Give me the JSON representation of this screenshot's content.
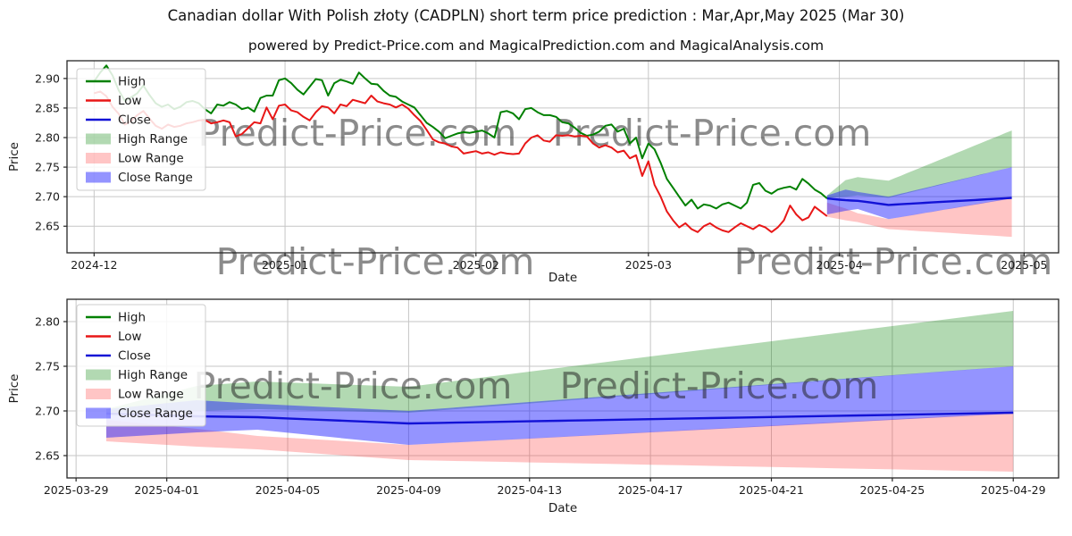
{
  "header": {
    "title": "Canadian dollar With Polish złoty (CADPLN) short term price prediction : Mar,Apr,May 2025 (Mar 30)",
    "subtitle": "powered by Predict-Price.com and MagicalPrediction.com and MagicalAnalysis.com"
  },
  "watermark": "Predict-Price.com",
  "colors": {
    "high_line": "#008000",
    "low_line": "#e81717",
    "close_line": "#1212d6",
    "high_band": "#008000",
    "low_band": "#ff4040",
    "close_band": "#2020ff",
    "grid": "#c6c6c6",
    "spine": "#262626",
    "watermark": "#c2c2c2"
  },
  "chart_data": [
    {
      "type": "line",
      "title": "",
      "xlabel": "Date",
      "ylabel": "Price",
      "xlim_days": [
        -4.4,
        156.6
      ],
      "ylim": [
        2.605,
        2.93
      ],
      "grid": true,
      "legend_position": "upper-left",
      "legend": [
        "High",
        "Low",
        "Close",
        "High Range",
        "Low Range",
        "Close Range"
      ],
      "x_ticks": [
        {
          "day": 0,
          "label": "2024-12"
        },
        {
          "day": 31,
          "label": "2025-01"
        },
        {
          "day": 62,
          "label": "2025-02"
        },
        {
          "day": 90,
          "label": "2025-03"
        },
        {
          "day": 121,
          "label": "2025-04"
        },
        {
          "day": 151,
          "label": "2025-05"
        }
      ],
      "y_ticks": [
        {
          "v": 2.65,
          "label": "2.65"
        },
        {
          "v": 2.7,
          "label": "2.70"
        },
        {
          "v": 2.75,
          "label": "2.75"
        },
        {
          "v": 2.8,
          "label": "2.80"
        },
        {
          "v": 2.85,
          "label": "2.85"
        },
        {
          "v": 2.9,
          "label": "2.90"
        }
      ],
      "history": {
        "start_day": 0,
        "high": [
          2.895,
          2.91,
          2.922,
          2.905,
          2.88,
          2.862,
          2.868,
          2.875,
          2.888,
          2.872,
          2.858,
          2.852,
          2.856,
          2.848,
          2.852,
          2.86,
          2.862,
          2.858,
          2.848,
          2.841,
          2.856,
          2.854,
          2.86,
          2.856,
          2.848,
          2.851,
          2.844,
          2.867,
          2.871,
          2.871,
          2.897,
          2.9,
          2.892,
          2.881,
          2.873,
          2.886,
          2.899,
          2.897,
          2.871,
          2.892,
          2.898,
          2.895,
          2.891,
          2.91,
          2.9,
          2.891,
          2.89,
          2.879,
          2.871,
          2.869,
          2.861,
          2.856,
          2.851,
          2.838,
          2.825,
          2.818,
          2.81,
          2.799,
          2.803,
          2.807,
          2.809,
          2.808,
          2.81,
          2.812,
          2.807,
          2.8,
          2.843,
          2.845,
          2.841,
          2.831,
          2.848,
          2.85,
          2.843,
          2.838,
          2.838,
          2.835,
          2.826,
          2.824,
          2.817,
          2.808,
          2.803,
          2.805,
          2.81,
          2.82,
          2.822,
          2.81,
          2.815,
          2.79,
          2.8,
          2.765,
          2.79,
          2.78,
          2.757,
          2.73,
          2.715,
          2.7,
          2.685,
          2.695,
          2.68,
          2.687,
          2.685,
          2.68,
          2.687,
          2.69,
          2.685,
          2.68,
          2.69,
          2.72,
          2.723,
          2.71,
          2.705,
          2.712,
          2.715,
          2.717,
          2.712,
          2.73,
          2.722,
          2.712,
          2.706,
          2.697
        ],
        "low": [
          2.875,
          2.878,
          2.87,
          2.852,
          2.84,
          2.822,
          2.828,
          2.838,
          2.845,
          2.832,
          2.82,
          2.815,
          2.822,
          2.818,
          2.82,
          2.824,
          2.826,
          2.829,
          2.83,
          2.824,
          2.826,
          2.829,
          2.826,
          2.802,
          2.806,
          2.816,
          2.826,
          2.824,
          2.851,
          2.831,
          2.854,
          2.856,
          2.846,
          2.843,
          2.835,
          2.829,
          2.843,
          2.853,
          2.851,
          2.841,
          2.856,
          2.853,
          2.864,
          2.861,
          2.858,
          2.871,
          2.861,
          2.858,
          2.856,
          2.851,
          2.856,
          2.849,
          2.838,
          2.828,
          2.813,
          2.797,
          2.792,
          2.79,
          2.785,
          2.783,
          2.773,
          2.775,
          2.777,
          2.773,
          2.775,
          2.771,
          2.775,
          2.773,
          2.772,
          2.773,
          2.79,
          2.8,
          2.804,
          2.795,
          2.793,
          2.804,
          2.803,
          2.804,
          2.802,
          2.803,
          2.802,
          2.79,
          2.783,
          2.787,
          2.783,
          2.775,
          2.778,
          2.765,
          2.77,
          2.735,
          2.76,
          2.72,
          2.7,
          2.675,
          2.66,
          2.648,
          2.655,
          2.645,
          2.64,
          2.65,
          2.655,
          2.648,
          2.643,
          2.64,
          2.648,
          2.655,
          2.65,
          2.645,
          2.652,
          2.648,
          2.64,
          2.648,
          2.66,
          2.685,
          2.67,
          2.66,
          2.665,
          2.683,
          2.675,
          2.667
        ]
      },
      "forecast_ref": 0
    },
    {
      "type": "line",
      "title": "",
      "xlabel": "Date",
      "ylabel": "Price",
      "xlim_days": [
        -0.3,
        32.5
      ],
      "ylim": [
        2.625,
        2.825
      ],
      "grid": true,
      "legend_position": "upper-left",
      "legend": [
        "High",
        "Low",
        "Close",
        "High Range",
        "Low Range",
        "Close Range"
      ],
      "x_ticks": [
        {
          "day": 0,
          "label": "2025-03-29"
        },
        {
          "day": 3,
          "label": "2025-04-01"
        },
        {
          "day": 7,
          "label": "2025-04-05"
        },
        {
          "day": 11,
          "label": "2025-04-09"
        },
        {
          "day": 15,
          "label": "2025-04-13"
        },
        {
          "day": 19,
          "label": "2025-04-17"
        },
        {
          "day": 23,
          "label": "2025-04-21"
        },
        {
          "day": 27,
          "label": "2025-04-25"
        },
        {
          "day": 31,
          "label": "2025-04-29"
        }
      ],
      "y_ticks": [
        {
          "v": 2.65,
          "label": "2.65"
        },
        {
          "v": 2.7,
          "label": "2.70"
        },
        {
          "v": 2.75,
          "label": "2.75"
        },
        {
          "v": 2.8,
          "label": "2.80"
        }
      ],
      "forecast_ref": 0
    }
  ],
  "forecast": {
    "dates": [
      "2025-03-30",
      "2025-04-29"
    ],
    "close": [
      2.697,
      2.696,
      2.695,
      2.694,
      2.6935,
      2.693,
      2.6916,
      2.6902,
      2.6888,
      2.6874,
      2.686,
      2.6866,
      2.6872,
      2.6878,
      2.6884,
      2.689,
      2.6896,
      2.6902,
      2.6908,
      2.6914,
      2.692,
      2.6926,
      2.6932,
      2.6938,
      2.6944,
      2.695,
      2.6956,
      2.6962,
      2.6968,
      2.6974,
      2.698
    ],
    "high_top": [
      2.702,
      2.7107,
      2.7193,
      2.728,
      2.7305,
      2.733,
      2.7318,
      2.7306,
      2.7294,
      2.7282,
      2.727,
      2.7313,
      2.7355,
      2.7398,
      2.744,
      2.7483,
      2.7525,
      2.7568,
      2.761,
      2.7653,
      2.7695,
      2.7738,
      2.778,
      2.7823,
      2.7865,
      2.7908,
      2.795,
      2.7993,
      2.8035,
      2.8078,
      2.812
    ],
    "high_bot": [
      2.698,
      2.6987,
      2.6993,
      2.7,
      2.701,
      2.702,
      2.7012,
      2.7004,
      2.6996,
      2.6988,
      2.698,
      2.7006,
      2.7032,
      2.7058,
      2.7084,
      2.711,
      2.7136,
      2.7162,
      2.7188,
      2.7214,
      2.724,
      2.7266,
      2.7292,
      2.7318,
      2.7344,
      2.737,
      2.7396,
      2.7422,
      2.7448,
      2.7474,
      2.75
    ],
    "close_top": [
      2.702,
      2.7053,
      2.7087,
      2.712,
      2.71,
      2.708,
      2.7064,
      2.7048,
      2.7032,
      2.7016,
      2.7,
      2.7025,
      2.705,
      2.7075,
      2.71,
      2.7125,
      2.715,
      2.7175,
      2.72,
      2.7225,
      2.725,
      2.7275,
      2.73,
      2.7325,
      2.735,
      2.7375,
      2.74,
      2.7425,
      2.745,
      2.7475,
      2.75
    ],
    "close_bot": [
      2.67,
      2.672,
      2.674,
      2.676,
      2.6775,
      2.679,
      2.6756,
      2.6722,
      2.6688,
      2.6654,
      2.662,
      2.6638,
      2.6655,
      2.6672,
      2.669,
      2.6708,
      2.6725,
      2.6742,
      2.676,
      2.6778,
      2.6795,
      2.6812,
      2.683,
      2.6848,
      2.6865,
      2.6882,
      2.69,
      2.6918,
      2.6935,
      2.6952,
      2.697
    ],
    "low_top": [
      2.69,
      2.6867,
      2.6833,
      2.68,
      2.676,
      2.672,
      2.67,
      2.668,
      2.666,
      2.664,
      2.662,
      2.6638,
      2.6656,
      2.6674,
      2.6692,
      2.671,
      2.6728,
      2.6746,
      2.6764,
      2.6782,
      2.68,
      2.6818,
      2.6836,
      2.6854,
      2.6872,
      2.689,
      2.6908,
      2.6926,
      2.6944,
      2.6962,
      2.698
    ],
    "low_bot": [
      2.666,
      2.664,
      2.662,
      2.66,
      2.6585,
      2.657,
      2.6546,
      2.6522,
      2.6498,
      2.6474,
      2.645,
      2.6444,
      2.6437,
      2.6431,
      2.6424,
      2.6418,
      2.6411,
      2.6405,
      2.6398,
      2.6392,
      2.6385,
      2.6379,
      2.6372,
      2.6366,
      2.6359,
      2.6353,
      2.6346,
      2.634,
      2.6333,
      2.6327,
      2.632
    ]
  }
}
